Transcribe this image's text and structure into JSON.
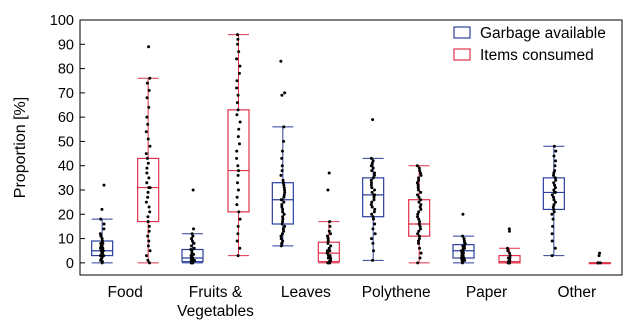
{
  "chart_data": {
    "type": "box",
    "ylabel": "Proportion [%]",
    "ylim": [
      -5,
      100
    ],
    "yticks": [
      0,
      10,
      20,
      30,
      40,
      50,
      60,
      70,
      80,
      90,
      100
    ],
    "categories": [
      "Food",
      "Fruits & Vegetables",
      "Leaves",
      "Polythene",
      "Paper",
      "Other"
    ],
    "category_lines": [
      [
        "Food"
      ],
      [
        "Fruits &",
        "Vegetables"
      ],
      [
        "Leaves"
      ],
      [
        "Polythene"
      ],
      [
        "Paper"
      ],
      [
        "Other"
      ]
    ],
    "legend": {
      "placement": "top-right"
    },
    "grid": false,
    "series": [
      {
        "name": "Garbage available",
        "color": "#2b3f9c",
        "boxes": [
          {
            "whisker_low": 0,
            "q1": 3,
            "median": 5,
            "q3": 9,
            "whisker_high": 18,
            "points": [
              0,
              0.5,
              1,
              1.5,
              2,
              2.5,
              3,
              3,
              4,
              4,
              5,
              5,
              6,
              6,
              7,
              7,
              8,
              8,
              9,
              10,
              11,
              12,
              14,
              16,
              18,
              22,
              32
            ]
          },
          {
            "whisker_low": 0,
            "q1": 0.5,
            "median": 2,
            "q3": 5.5,
            "whisker_high": 12,
            "points": [
              0,
              0,
              0,
              0.5,
              0.5,
              1,
              1,
              1.5,
              2,
              2,
              2.5,
              3,
              3.5,
              4,
              5,
              5.5,
              6,
              7,
              8,
              9,
              10,
              11,
              12,
              14,
              30
            ]
          },
          {
            "whisker_low": 7,
            "q1": 16,
            "median": 26,
            "q3": 33,
            "whisker_high": 56,
            "points": [
              7,
              8,
              9,
              10,
              11,
              12,
              13,
              14,
              15,
              16,
              17,
              18,
              19,
              20,
              21,
              22,
              23,
              24,
              25,
              26,
              26,
              27,
              28,
              29,
              30,
              31,
              32,
              33,
              34,
              36,
              38,
              40,
              43,
              46,
              50,
              56,
              69,
              70,
              83
            ]
          },
          {
            "whisker_low": 1,
            "q1": 19,
            "median": 28,
            "q3": 35,
            "whisker_high": 43,
            "points": [
              1,
              5,
              8,
              10,
              12,
              14,
              16,
              18,
              19,
              20,
              21,
              22,
              23,
              24,
              25,
              26,
              27,
              28,
              28,
              29,
              30,
              31,
              32,
              33,
              34,
              35,
              36,
              37,
              38,
              39,
              40,
              41,
              42,
              43,
              59
            ]
          },
          {
            "whisker_low": 0,
            "q1": 2,
            "median": 5,
            "q3": 7.5,
            "whisker_high": 11,
            "points": [
              0,
              0.5,
              1,
              1,
              1.5,
              2,
              2,
              3,
              3,
              4,
              4,
              5,
              5,
              6,
              6,
              7,
              7,
              8,
              9,
              10,
              11,
              20
            ]
          },
          {
            "whisker_low": 3,
            "q1": 22,
            "median": 29,
            "q3": 35,
            "whisker_high": 48,
            "points": [
              3,
              6,
              9,
              12,
              15,
              18,
              20,
              21,
              22,
              23,
              24,
              25,
              26,
              27,
              28,
              29,
              29,
              30,
              31,
              32,
              33,
              34,
              35,
              36,
              37,
              38,
              40,
              42,
              44,
              46,
              48
            ]
          }
        ]
      },
      {
        "name": "Items consumed",
        "color": "#e0324b",
        "boxes": [
          {
            "whisker_low": 0,
            "q1": 17,
            "median": 31,
            "q3": 43,
            "whisker_high": 76,
            "points": [
              0,
              1,
              3,
              5,
              7,
              9,
              11,
              13,
              15,
              17,
              19,
              21,
              23,
              25,
              27,
              29,
              31,
              31,
              33,
              35,
              37,
              39,
              41,
              43,
              45,
              48,
              51,
              54,
              57,
              60,
              64,
              68,
              71,
              74,
              76,
              89
            ]
          },
          {
            "whisker_low": 3,
            "q1": 21,
            "median": 38,
            "q3": 63,
            "whisker_high": 94,
            "points": [
              3,
              6,
              9,
              12,
              15,
              18,
              21,
              24,
              27,
              30,
              33,
              36,
              38,
              40,
              43,
              46,
              49,
              52,
              55,
              58,
              61,
              63,
              66,
              69,
              72,
              75,
              78,
              81,
              84,
              87,
              90,
              92,
              94
            ]
          },
          {
            "whisker_low": 0,
            "q1": 0.5,
            "median": 4,
            "q3": 8.5,
            "whisker_high": 17,
            "points": [
              0,
              0,
              0,
              0.5,
              1,
              1,
              2,
              2,
              3,
              3,
              4,
              4,
              5,
              5,
              6,
              7,
              8,
              9,
              10,
              11,
              12,
              13,
              15,
              17,
              30,
              37
            ]
          },
          {
            "whisker_low": 0,
            "q1": 11,
            "median": 16,
            "q3": 26,
            "whisker_high": 40,
            "points": [
              0,
              2,
              4,
              6,
              8,
              9,
              10,
              11,
              12,
              13,
              14,
              15,
              16,
              16,
              17,
              18,
              19,
              20,
              21,
              22,
              23,
              24,
              25,
              26,
              27,
              28,
              29,
              30,
              31,
              32,
              33,
              34,
              35,
              36,
              37,
              38,
              39,
              40
            ]
          },
          {
            "whisker_low": 0,
            "q1": 0,
            "median": 0.5,
            "q3": 3,
            "whisker_high": 6,
            "points": [
              0,
              0,
              0,
              0,
              0.5,
              1,
              1,
              2,
              2,
              3,
              4,
              5,
              6,
              13,
              14
            ]
          },
          {
            "whisker_low": 0,
            "q1": 0,
            "median": 0,
            "q3": 0,
            "whisker_high": 0,
            "points": [
              0,
              0,
              0,
              0,
              3,
              4
            ]
          }
        ]
      }
    ]
  }
}
